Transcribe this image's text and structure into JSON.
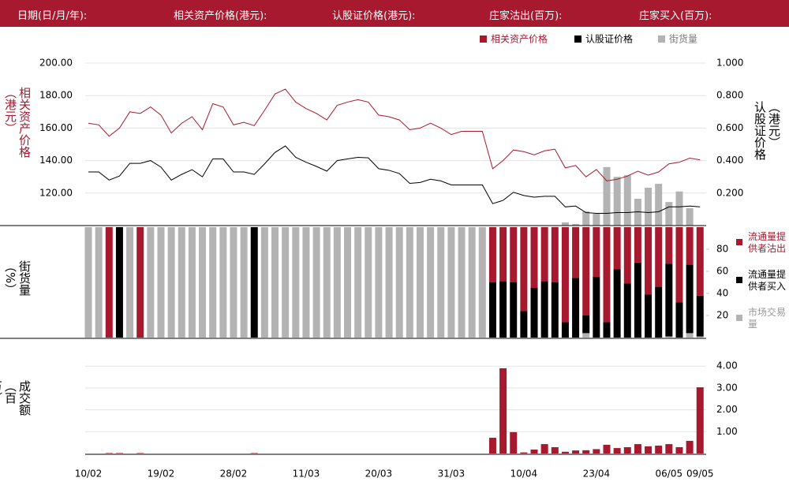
{
  "header": {
    "labels": [
      "日期(日/月/年):",
      "相关资产价格(港元):",
      "认股证价格(港元):",
      "庄家沽出(百万):",
      "庄家买入(百万):"
    ]
  },
  "chart_data": [
    {
      "type": "line",
      "ylabel": "相关资产价格（港元）",
      "y2label": "认股证价格（港元）",
      "ylim": [
        100,
        200
      ],
      "yticks": [
        {
          "value": 120,
          "label": "120.00"
        },
        {
          "value": 140,
          "label": "140.00"
        },
        {
          "value": 160,
          "label": "160.00"
        },
        {
          "value": 180,
          "label": "180.00"
        },
        {
          "value": 200,
          "label": "200.00"
        }
      ],
      "y2lim": [
        0,
        1
      ],
      "y2ticks": [
        {
          "value": 0.2,
          "label": "0.200"
        },
        {
          "value": 0.4,
          "label": "0.400"
        },
        {
          "value": 0.6,
          "label": "0.600"
        },
        {
          "value": 0.8,
          "label": "0.800"
        },
        {
          "value": 1,
          "label": "1.000"
        }
      ],
      "grid": true,
      "series": [
        {
          "name": "相关资产价格",
          "color": "#a6192e",
          "values": [
            163,
            162,
            155,
            160,
            170,
            169,
            173,
            168,
            157,
            163,
            167,
            159,
            175,
            173,
            162,
            163.5,
            161.5,
            171,
            181,
            184,
            176,
            172,
            169,
            165,
            174,
            176,
            177.5,
            176,
            168,
            167,
            165,
            159,
            160,
            163,
            160,
            156,
            158,
            158,
            158,
            135,
            140,
            146.5,
            145.5,
            143.5,
            146,
            147,
            135.5,
            137,
            130,
            134.5,
            127.5,
            128.5,
            130.5,
            133.5,
            131,
            133,
            138,
            139,
            141.5,
            140.5
          ]
        },
        {
          "name": "认股证价格",
          "color": "#000000",
          "axis": "y2",
          "values": [
            0.33,
            0.33,
            0.28,
            0.305,
            0.383,
            0.383,
            0.4,
            0.36,
            0.28,
            0.315,
            0.344,
            0.3,
            0.41,
            0.41,
            0.33,
            0.33,
            0.315,
            0.38,
            0.45,
            0.49,
            0.42,
            0.39,
            0.364,
            0.335,
            0.4,
            0.41,
            0.42,
            0.417,
            0.35,
            0.34,
            0.32,
            0.26,
            0.265,
            0.285,
            0.275,
            0.25,
            0.25,
            0.25,
            0.25,
            0.135,
            0.155,
            0.205,
            0.185,
            0.175,
            0.18,
            0.18,
            0.115,
            0.12,
            0.08,
            0.075,
            0.075,
            0.08,
            0.08,
            0.085,
            0.08,
            0.085,
            0.115,
            0.115,
            0.12,
            0.115
          ]
        },
        {
          "name": "街货量",
          "color": "#b3b3b3",
          "axis": "y2",
          "type": "bar",
          "values": [
            0,
            0,
            0,
            0,
            0,
            0,
            0,
            0,
            0,
            0,
            0,
            0,
            0,
            0,
            0,
            0,
            0,
            0,
            0,
            0,
            0,
            0,
            0,
            0,
            0,
            0,
            0,
            0,
            0,
            0,
            0,
            0,
            0,
            0,
            0,
            0,
            0,
            0,
            0,
            0,
            0,
            0,
            0,
            0,
            0,
            0,
            0.02,
            0.01,
            0.087,
            0.073,
            0.36,
            0.3,
            0.31,
            0.165,
            0.233,
            0.257,
            0.145,
            0.21,
            0.107,
            0
          ]
        }
      ]
    },
    {
      "type": "bar",
      "stacked": true,
      "ylabel": "街货量（%）",
      "ylim": [
        0,
        100
      ],
      "yticks": [
        20,
        40,
        60,
        80
      ],
      "series": [
        {
          "name": "流通量提供者沽出",
          "color": "#a6192e",
          "values": [
            0,
            0,
            100,
            0,
            0,
            100,
            0,
            0,
            0,
            0,
            0,
            0,
            0,
            0,
            0,
            0,
            0,
            0,
            0,
            0,
            0,
            0,
            0,
            0,
            0,
            0,
            0,
            0,
            0,
            0,
            0,
            0,
            0,
            0,
            0,
            0,
            0,
            0,
            0,
            50,
            49,
            50,
            76,
            55,
            49,
            50,
            86,
            46,
            80,
            45,
            86,
            38,
            51,
            32,
            61,
            54,
            33,
            68,
            34,
            62
          ]
        },
        {
          "name": "流通量提供者买入",
          "color": "#000000",
          "values": [
            0,
            0,
            0,
            100,
            0,
            0,
            0,
            0,
            0,
            0,
            0,
            0,
            0,
            0,
            0,
            0,
            100,
            0,
            0,
            0,
            0,
            0,
            0,
            0,
            0,
            0,
            0,
            0,
            0,
            0,
            0,
            0,
            0,
            0,
            0,
            0,
            0,
            0,
            0,
            50,
            51,
            50,
            24,
            45,
            51,
            50,
            14,
            54,
            16,
            55,
            14,
            62,
            49,
            68,
            39,
            46,
            66,
            32,
            62,
            37
          ]
        },
        {
          "name": "市场交易量",
          "color": "#b3b3b3",
          "values": [
            100,
            100,
            0,
            0,
            100,
            0,
            100,
            100,
            100,
            100,
            100,
            100,
            100,
            100,
            100,
            100,
            0,
            100,
            100,
            100,
            100,
            100,
            100,
            100,
            100,
            100,
            100,
            100,
            100,
            100,
            100,
            100,
            100,
            100,
            100,
            100,
            100,
            100,
            100,
            0,
            0,
            0,
            0,
            0,
            0,
            0,
            0,
            0,
            4,
            0,
            0,
            0,
            0,
            0,
            0,
            0,
            1,
            0,
            4,
            1
          ]
        }
      ]
    },
    {
      "type": "bar",
      "ylabel": "成交额（百万）",
      "color": "#a6192e",
      "ylim": [
        0,
        4.44
      ],
      "yticks": [
        {
          "value": 1,
          "label": "1.00"
        },
        {
          "value": 2,
          "label": "2.00"
        },
        {
          "value": 3,
          "label": "3.00"
        },
        {
          "value": 4,
          "label": "4.00"
        }
      ],
      "grid": true,
      "categories": [
        "10/02",
        null,
        null,
        null,
        null,
        null,
        null,
        "19/02",
        null,
        null,
        null,
        null,
        null,
        null,
        "28/02",
        null,
        null,
        null,
        null,
        null,
        null,
        "11/03",
        null,
        null,
        null,
        null,
        null,
        null,
        "20/03",
        null,
        null,
        null,
        null,
        null,
        null,
        "31/03",
        null,
        null,
        null,
        null,
        null,
        null,
        "10/04",
        null,
        null,
        null,
        null,
        null,
        null,
        "23/04",
        null,
        null,
        null,
        null,
        null,
        null,
        "06/05",
        null,
        null,
        "09/05"
      ],
      "values": [
        0,
        0,
        0.02,
        0.02,
        0,
        0.02,
        0,
        0,
        0,
        0,
        0,
        0,
        0,
        0,
        0,
        0,
        0.02,
        0,
        0,
        0,
        0,
        0,
        0,
        0,
        0,
        0,
        0,
        0,
        0,
        0,
        0,
        0,
        0,
        0,
        0,
        0,
        0,
        0,
        0,
        0.72,
        3.9,
        0.98,
        0.05,
        0.18,
        0.43,
        0.29,
        0.08,
        0.14,
        0.15,
        0.2,
        0.4,
        0.25,
        0.29,
        0.43,
        0.33,
        0.36,
        0.43,
        0.29,
        0.58,
        3.03
      ]
    }
  ]
}
